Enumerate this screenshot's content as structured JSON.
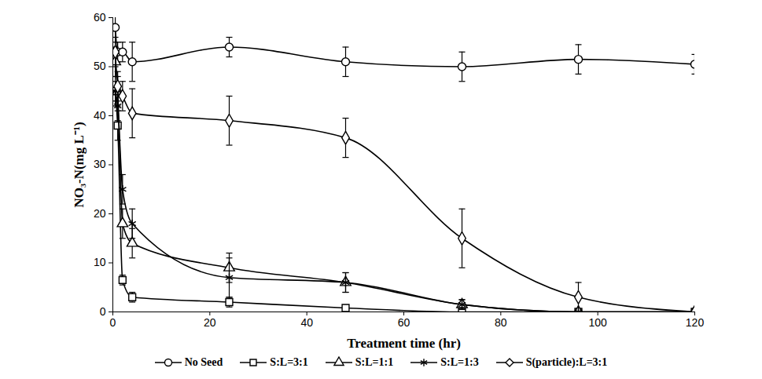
{
  "chart_data": {
    "type": "line",
    "x_label": "Treatment time (hr)",
    "y_label": "NO₃-N(mg L⁻¹)",
    "xlim": [
      0,
      120
    ],
    "xticks": [
      0,
      20,
      40,
      60,
      80,
      100,
      120
    ],
    "ylim": [
      0,
      60
    ],
    "yticks": [
      0,
      10,
      20,
      30,
      40,
      50,
      60
    ],
    "grid": false,
    "legend": "bottom",
    "x": [
      0.5,
      1,
      2,
      4,
      24,
      48,
      72,
      96,
      120
    ],
    "series": [
      {
        "name": "No Seed",
        "color": "#000000",
        "marker": "circle",
        "line_style": "solid",
        "values": [
          58,
          53,
          53,
          51,
          54,
          51,
          50,
          51.5,
          50.5
        ],
        "errors": [
          3,
          2,
          2,
          4,
          2,
          3,
          3,
          3,
          2
        ]
      },
      {
        "name": "S:L=3:1",
        "color": "#000000",
        "marker": "square",
        "line_style": "solid",
        "values": [
          45,
          38,
          6.5,
          3,
          2,
          0.8,
          0,
          0,
          0
        ],
        "errors": [
          2,
          3,
          1,
          1,
          1,
          0.5,
          0,
          0,
          0
        ]
      },
      {
        "name": "S:L=1:1",
        "color": "#000000",
        "marker": "triangle",
        "line_style": "solid",
        "values": [
          51,
          45,
          18,
          14,
          9,
          6,
          1.5,
          0,
          0
        ],
        "errors": [
          3,
          3,
          3,
          3,
          3,
          2,
          1,
          0,
          0
        ]
      },
      {
        "name": "S:L=1:3",
        "color": "#000000",
        "marker": "asterisk",
        "line_style": "solid",
        "values": [
          45,
          42,
          25,
          18,
          7,
          6,
          1.5,
          0,
          0
        ],
        "errors": [
          3,
          3,
          3,
          3,
          4,
          2,
          1,
          0,
          0
        ]
      },
      {
        "name": "S(particle):L=3:1",
        "color": "#000000",
        "marker": "diamond",
        "line_style": "solid",
        "values": [
          53,
          46,
          44,
          40.5,
          39,
          35.5,
          15,
          3,
          0
        ],
        "errors": [
          3,
          3,
          3,
          5,
          5,
          4,
          6,
          3,
          0
        ]
      }
    ]
  }
}
